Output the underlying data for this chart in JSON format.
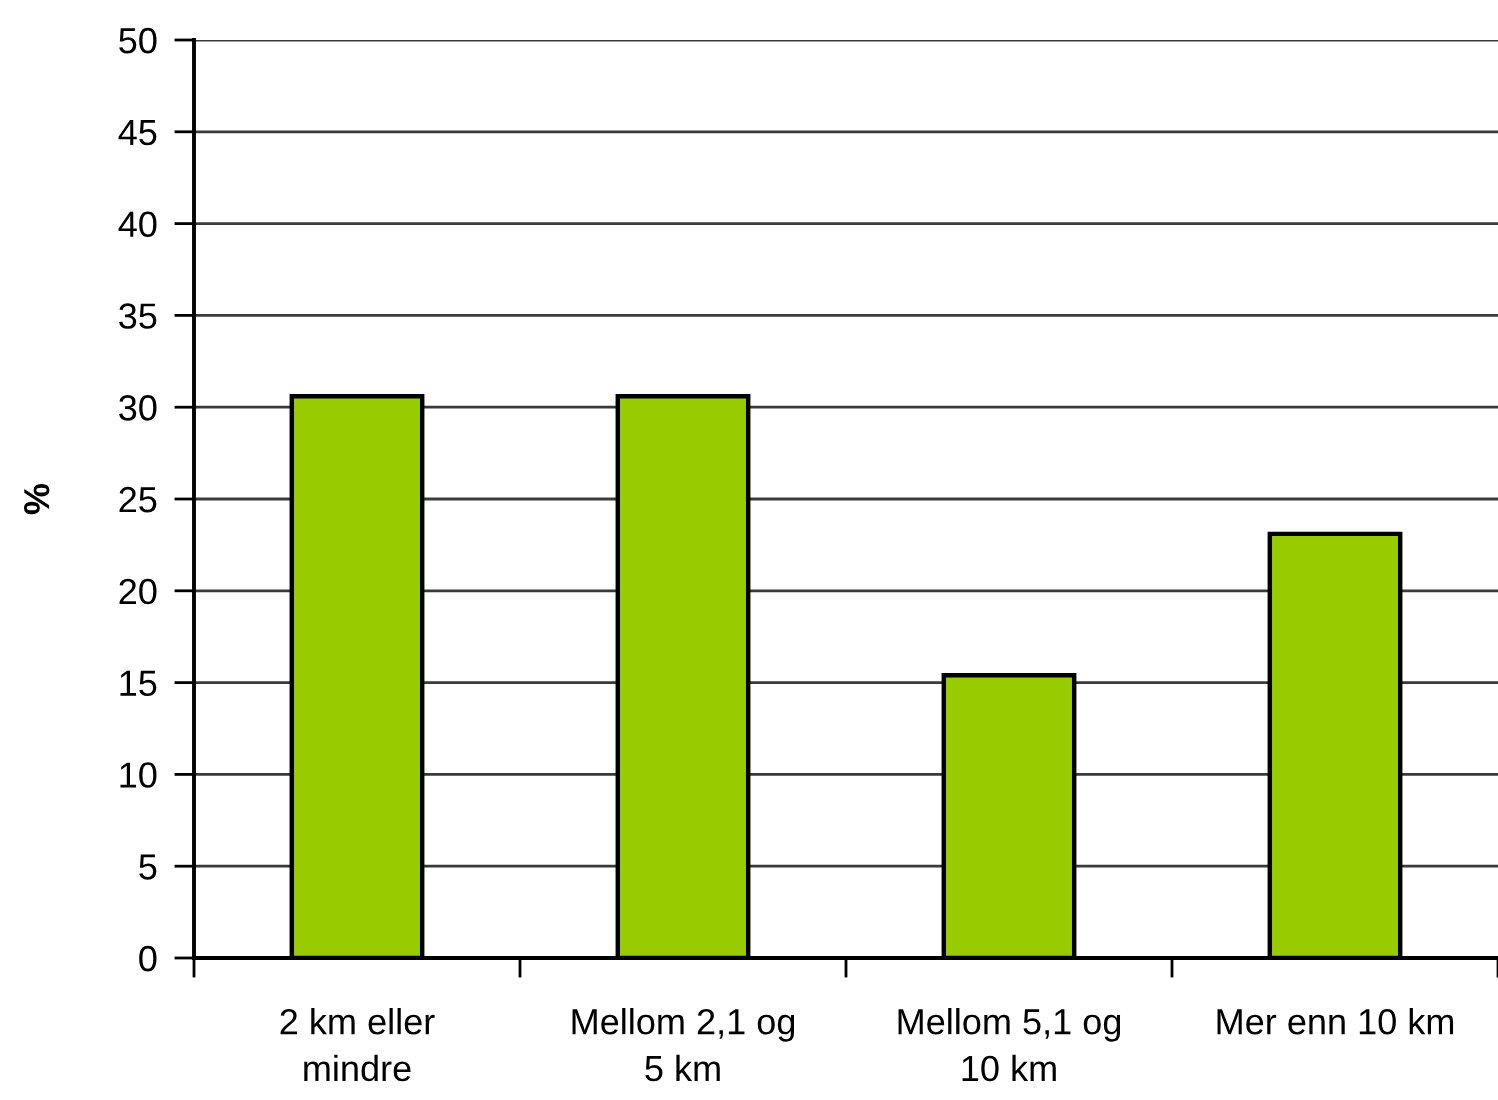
{
  "chart_data": {
    "type": "bar",
    "ylabel": "%",
    "categories": [
      "2 km eller\nmindre",
      "Mellom 2,1 og\n5 km",
      "Mellom 5,1 og\n10 km",
      "Mer enn 10 km"
    ],
    "values": [
      30.6,
      30.6,
      15.4,
      23.1
    ],
    "color": "#99cc00",
    "ylim": [
      0,
      50
    ],
    "yticks": [
      0,
      5,
      10,
      15,
      20,
      25,
      30,
      35,
      40,
      45,
      50
    ],
    "grid": "y"
  }
}
